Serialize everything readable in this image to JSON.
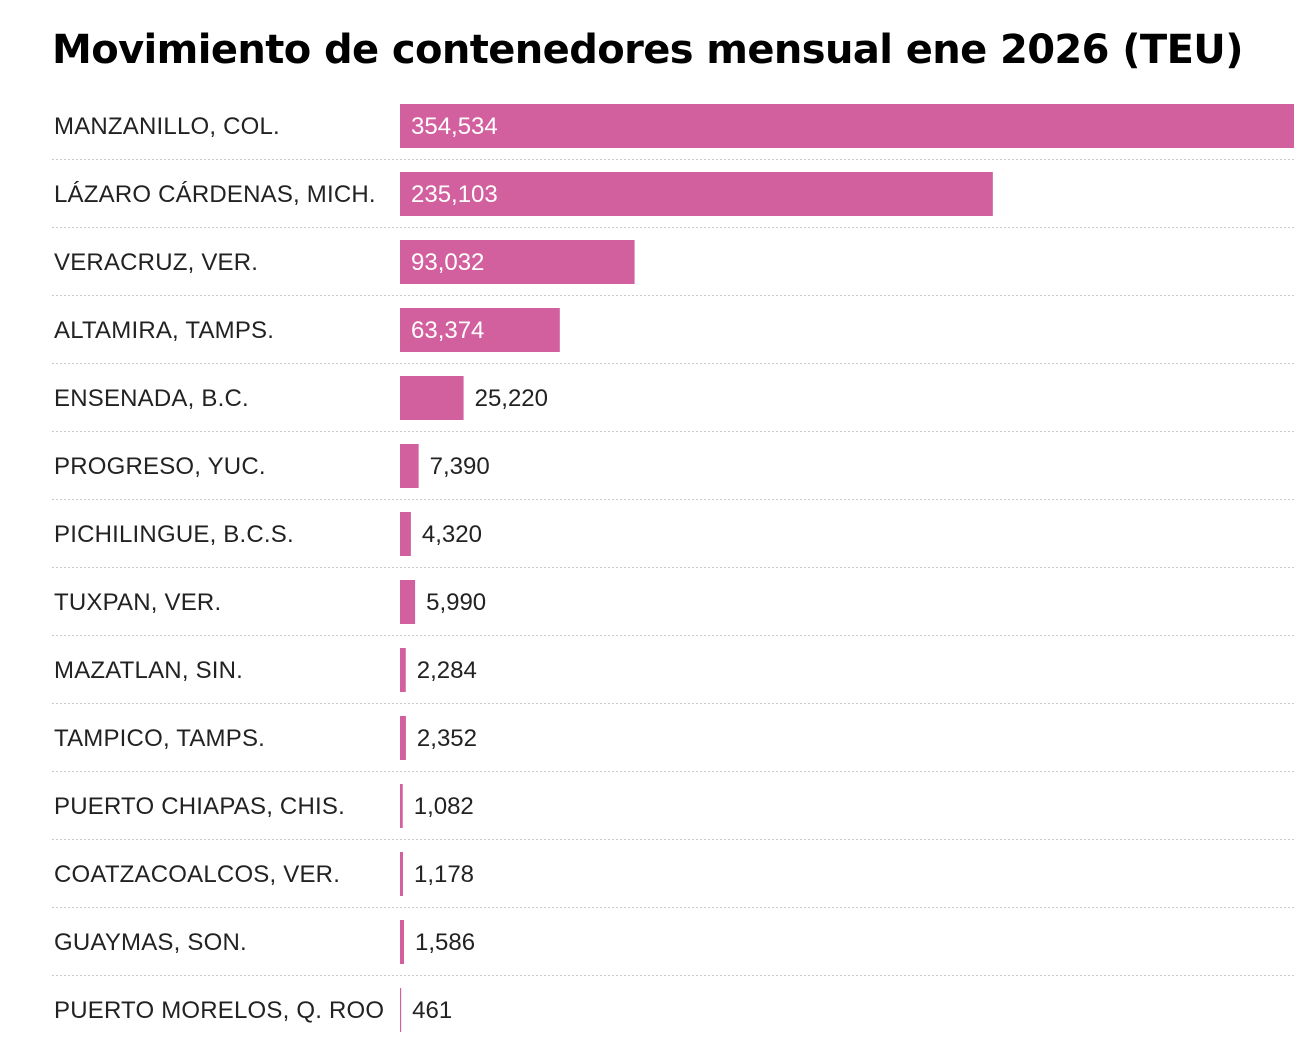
{
  "chart_data": {
    "type": "bar",
    "orientation": "horizontal",
    "title": "Movimiento de contenedores mensual ene 2026 (TEU)",
    "bar_color": "#d2609e",
    "categories": [
      "MANZANILLO, COL.",
      "LÁZARO CÁRDENAS, MICH.",
      "VERACRUZ, VER.",
      "ALTAMIRA, TAMPS.",
      "ENSENADA, B.C.",
      "PROGRESO, YUC.",
      "PICHILINGUE, B.C.S.",
      "TUXPAN, VER.",
      "MAZATLAN, SIN.",
      "TAMPICO, TAMPS.",
      "PUERTO CHIAPAS, CHIS.",
      "COATZACOALCOS, VER.",
      "GUAYMAS, SON.",
      "PUERTO MORELOS, Q. ROO"
    ],
    "values": [
      354534,
      235103,
      93032,
      63374,
      25220,
      7390,
      4320,
      5990,
      2284,
      2352,
      1082,
      1178,
      1586,
      461
    ],
    "value_labels": [
      "354,534",
      "235,103",
      "93,032",
      "63,374",
      "25,220",
      "7,390",
      "4,320",
      "5,990",
      "2,284",
      "2,352",
      "1,082",
      "1,178",
      "1,586",
      "461"
    ],
    "xlim": [
      0,
      354534
    ],
    "grid": false,
    "legend": "none"
  }
}
